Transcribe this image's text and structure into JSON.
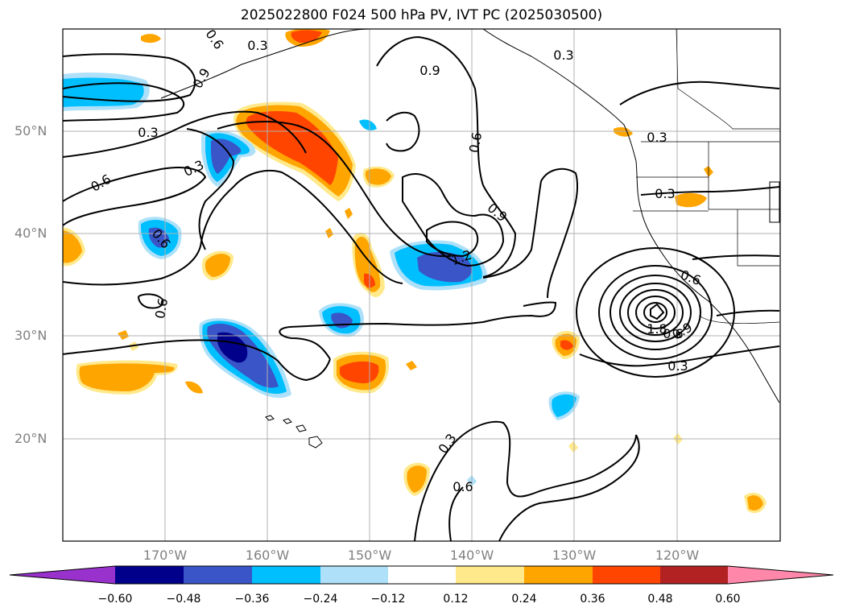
{
  "title": "2025022800 F024 500 hPa PV, IVT PC (2025030500)",
  "lat_labels": [
    "50°N",
    "40°N",
    "30°N",
    "20°N"
  ],
  "lon_labels": [
    "170°W",
    "160°W",
    "150°W",
    "140°W",
    "130°W",
    "120°W"
  ],
  "colorbar": {
    "ticks": [
      "−0.60",
      "−0.48",
      "−0.36",
      "−0.24",
      "−0.12",
      "0.12",
      "0.24",
      "0.36",
      "0.48",
      "0.60"
    ],
    "colors": [
      "#9932cc",
      "#00008b",
      "#3a55c8",
      "#00bfff",
      "#aee1f9",
      "#ffffff",
      "#ffe98a",
      "#ffa500",
      "#ff4500",
      "#b22222",
      "#ff88aa"
    ]
  },
  "contour_labels": [
    "0.3",
    "0.6",
    "0.9",
    "0.3",
    "0.9",
    "0.3",
    "0.3",
    "0.6",
    "0.6",
    "0.9",
    "0.3",
    "0.6",
    "0.6",
    "1.2",
    "0.3",
    "0.6",
    "0.9",
    "1.8",
    "0.6",
    "0.3",
    "0.3",
    "0.6"
  ]
}
